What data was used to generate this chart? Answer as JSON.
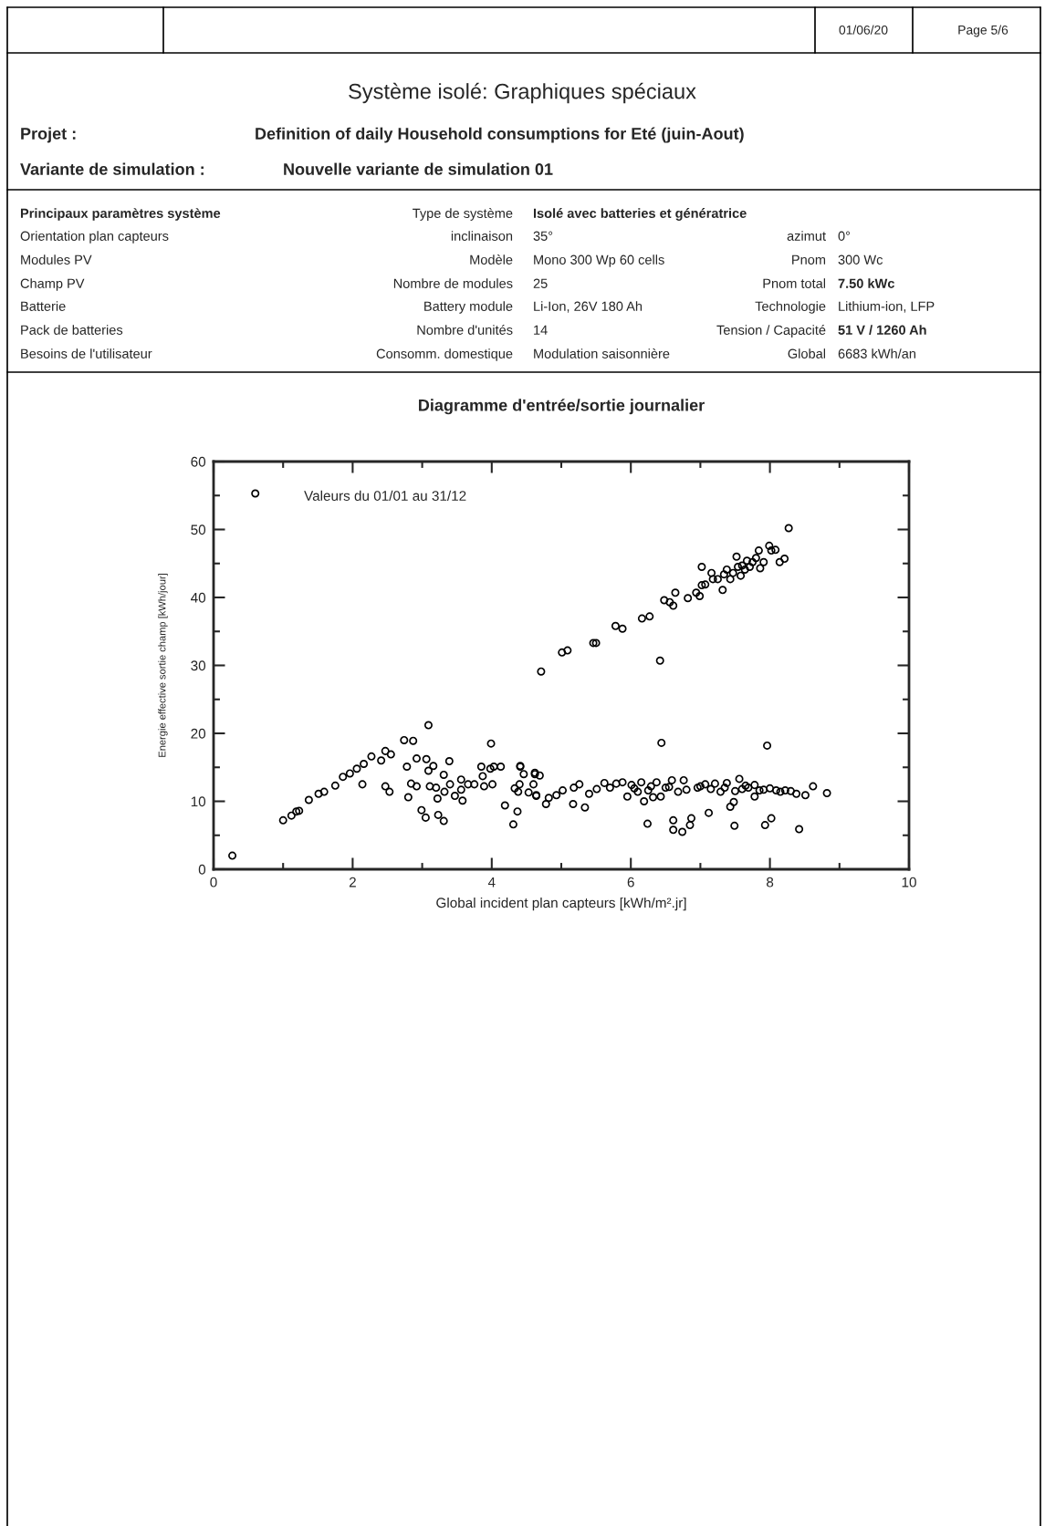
{
  "chart_data": {
    "type": "scatter",
    "title": "Diagramme d'entrée/sortie journalier",
    "xlabel": "Global incident plan capteurs [kWh/m².jr]",
    "ylabel": "Energie effective sortie champ [kWh/jour]",
    "xlim": [
      0,
      10
    ],
    "ylim": [
      0,
      60
    ],
    "xticks": [
      0,
      {
        "value": 1,
        "label": null
      },
      2,
      {
        "value": 3,
        "label": null
      },
      4,
      {
        "value": 5,
        "label": null
      },
      6,
      {
        "value": 7,
        "label": null
      },
      8,
      {
        "value": 9,
        "label": null
      },
      10
    ],
    "yticks": [
      0,
      {
        "value": 5,
        "label": null
      },
      10,
      {
        "value": 15,
        "label": null
      },
      20,
      {
        "value": 25,
        "label": null
      },
      30,
      {
        "value": 35,
        "label": null
      },
      40,
      {
        "value": 45,
        "label": null
      },
      50,
      {
        "value": 55,
        "label": null
      },
      60
    ],
    "grid": false,
    "marker": "circle",
    "series": [
      {
        "color": "#000000",
        "x": [
          0.27,
          0.6,
          1.0,
          1.12,
          1.19,
          1.23,
          1.37,
          1.51,
          1.59,
          1.75,
          1.86,
          1.96,
          2.06,
          2.14,
          2.16,
          2.27,
          2.41,
          2.47,
          2.55,
          2.47,
          2.53,
          2.74,
          2.87,
          2.78,
          2.84,
          2.8,
          2.92,
          2.92,
          2.99,
          3.05,
          3.09,
          3.06,
          3.09,
          3.16,
          3.11,
          3.2,
          3.22,
          3.23,
          3.31,
          3.31,
          3.32,
          3.39,
          3.4,
          3.47,
          3.56,
          3.58,
          3.56,
          3.66,
          3.75,
          3.85,
          3.87,
          3.89,
          3.99,
          3.98,
          4.03,
          4.13,
          4.01,
          4.19,
          4.31,
          4.37,
          4.33,
          4.4,
          4.41,
          4.46,
          4.38,
          4.53,
          4.62,
          4.6,
          4.64,
          4.71,
          4.41,
          4.62,
          4.69,
          4.64,
          4.78,
          4.82,
          4.93,
          5.02,
          5.17,
          5.34,
          5.18,
          5.26,
          5.4,
          5.51,
          5.62,
          5.7,
          5.79,
          5.88,
          5.95,
          6.01,
          6.1,
          6.15,
          6.19,
          6.24,
          6.29,
          6.32,
          6.37,
          6.44,
          6.43,
          6.5,
          6.59,
          6.61,
          6.61,
          6.68,
          6.74,
          6.76,
          6.85,
          6.87,
          6.96,
          7.12,
          7.07,
          7.21,
          7.29,
          7.38,
          7.43,
          7.48,
          7.49,
          7.56,
          7.6,
          7.69,
          7.78,
          7.78,
          7.91,
          7.93,
          7.96,
          8.02,
          8.09,
          8.22,
          8.38,
          8.42,
          8.51,
          8.62,
          8.82,
          6.05,
          6.25,
          6.55,
          6.8,
          7.0,
          7.15,
          7.35,
          7.5,
          7.65,
          7.85,
          8.0,
          8.15,
          8.3,
          5.01,
          5.09,
          5.46,
          5.5,
          5.78,
          5.88,
          6.16,
          6.27,
          6.42,
          6.48,
          6.56,
          6.61,
          6.64,
          6.82,
          6.94,
          6.99,
          7.02,
          7.02,
          7.07,
          7.16,
          7.18,
          7.25,
          7.32,
          7.34,
          7.38,
          7.43,
          7.47,
          7.52,
          7.54,
          7.58,
          7.6,
          7.64,
          7.67,
          7.71,
          7.75,
          7.8,
          7.84,
          7.86,
          7.91,
          7.99,
          8.02,
          8.08,
          8.14,
          8.21,
          8.27
        ],
        "values": [
          2.0,
          55.3,
          7.2,
          7.9,
          8.5,
          8.6,
          10.2,
          11.1,
          11.4,
          12.3,
          13.6,
          14.1,
          14.8,
          12.5,
          15.5,
          16.6,
          16.0,
          17.4,
          16.9,
          12.2,
          11.4,
          19.0,
          18.9,
          15.1,
          12.6,
          10.6,
          16.3,
          12.2,
          8.7,
          7.6,
          21.2,
          16.2,
          14.5,
          15.2,
          12.2,
          12.0,
          10.4,
          8.0,
          7.1,
          13.9,
          11.4,
          15.9,
          12.5,
          10.8,
          13.2,
          10.1,
          11.7,
          12.5,
          12.5,
          15.1,
          13.7,
          12.2,
          18.5,
          14.8,
          15.1,
          15.1,
          12.5,
          9.4,
          6.6,
          8.5,
          11.9,
          12.5,
          15.1,
          14.0,
          11.4,
          11.3,
          14.0,
          12.5,
          10.8,
          29.1,
          15.2,
          14.2,
          13.8,
          10.9,
          9.6,
          10.5,
          10.9,
          11.6,
          9.6,
          9.1,
          12.0,
          12.5,
          11.1,
          11.8,
          12.7,
          12.0,
          12.6,
          12.8,
          10.7,
          12.4,
          11.4,
          12.8,
          10.0,
          6.7,
          12.2,
          10.6,
          12.8,
          18.6,
          10.7,
          12.0,
          13.1,
          7.2,
          5.8,
          11.4,
          5.5,
          13.1,
          6.5,
          7.5,
          12.0,
          8.3,
          12.5,
          12.6,
          11.4,
          12.7,
          9.2,
          9.9,
          6.4,
          13.3,
          11.8,
          12.0,
          10.7,
          12.4,
          11.7,
          6.5,
          18.2,
          7.5,
          11.6,
          11.6,
          11.1,
          5.9,
          10.9,
          12.2,
          11.2,
          11.9,
          11.6,
          12.1,
          11.7,
          12.2,
          11.8,
          12.0,
          11.5,
          12.3,
          11.6,
          11.9,
          11.4,
          11.5,
          31.9,
          32.2,
          33.3,
          33.3,
          35.8,
          35.4,
          36.9,
          37.2,
          30.7,
          39.6,
          39.3,
          38.8,
          40.7,
          39.9,
          40.7,
          40.2,
          44.5,
          41.8,
          41.9,
          43.6,
          42.7,
          42.7,
          41.1,
          43.4,
          44.1,
          42.7,
          43.6,
          46.0,
          44.5,
          43.2,
          44.7,
          44.1,
          45.4,
          44.5,
          45.2,
          45.8,
          46.9,
          44.3,
          45.2,
          47.6,
          46.9,
          47.0,
          45.2,
          45.7,
          50.2
        ]
      }
    ],
    "annotations": [
      "01/06/20",
      "Page 5/6",
      "Système isolé: Graphiques spéciaux",
      "Projet :",
      "Definition of daily Household consumptions for Eté (juin-Aout)",
      "Variante de simulation :",
      "Nouvelle variante de simulation 01",
      "Principaux paramètres système",
      "Type de système",
      "Isolé avec batteries et génératrice",
      "Orientation plan capteurs",
      "inclinaison",
      "35°",
      "azimut",
      "0°",
      "Modules PV",
      "Modèle",
      "Mono 300 Wp 60 cells",
      "Pnom",
      "300 Wc",
      "Champ PV",
      "Nombre de modules",
      "25",
      "Pnom total",
      "7.50 kWc",
      "Batterie",
      "Battery module",
      "Li-Ion, 26V 180 Ah",
      "Technologie",
      "Lithium-ion, LFP",
      "Pack de batteries",
      "Nombre d'unités",
      "14",
      "Tension / Capacité",
      "51 V / 1260 Ah",
      "Besoins de l'utilisateur",
      "Consomm. domestique",
      "Modulation saisonnière",
      "Global",
      "6683 kWh/an",
      "Valeurs du 01/01 au 31/12"
    ]
  }
}
